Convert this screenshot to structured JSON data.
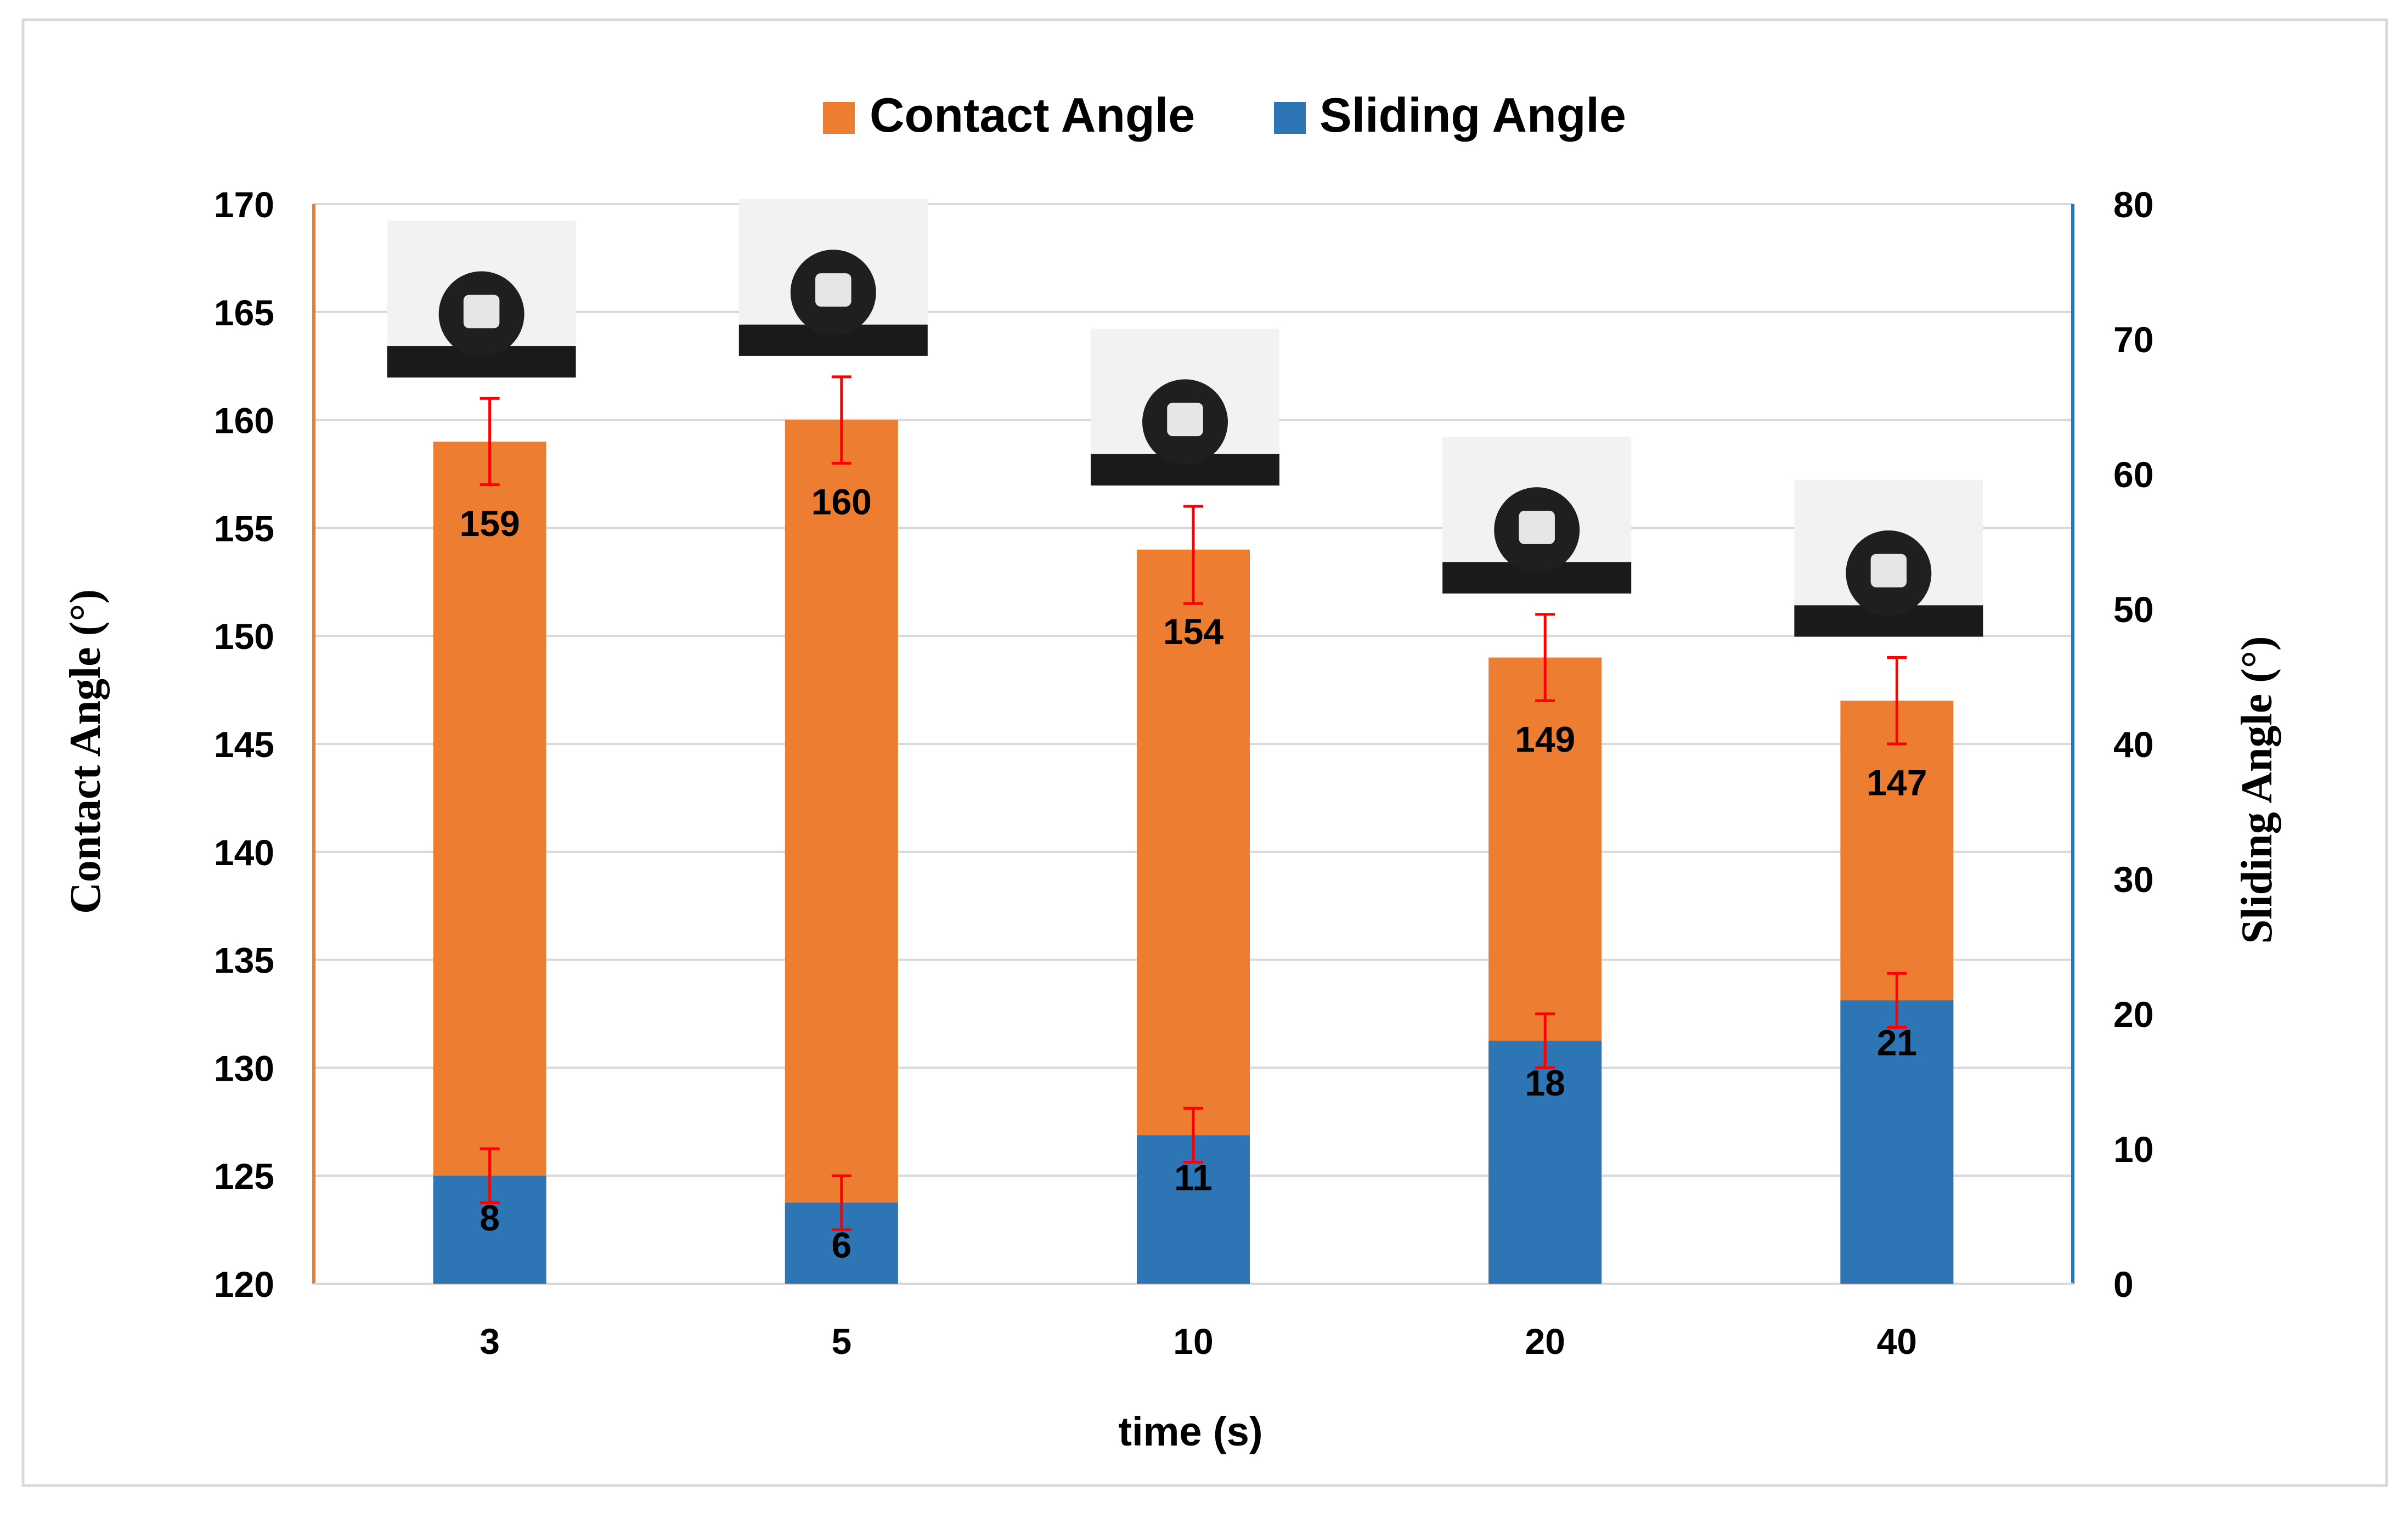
{
  "chart_data": {
    "type": "bar",
    "categories": [
      "3",
      "5",
      "10",
      "20",
      "40"
    ],
    "series": [
      {
        "name": "Contact Angle",
        "axis": "left",
        "color": "#ED7D31",
        "values": [
          159,
          160,
          154,
          149,
          147
        ],
        "data_labels": [
          "159",
          "160",
          "154",
          "149",
          "147"
        ],
        "error_minus": [
          2,
          2,
          2.5,
          2,
          2
        ],
        "error_plus": [
          2,
          2,
          2,
          2,
          2
        ]
      },
      {
        "name": "Sliding Angle",
        "axis": "right",
        "color": "#2E75B6",
        "values": [
          8,
          6,
          11,
          18,
          21
        ],
        "data_labels": [
          "8",
          "6",
          "11",
          "18",
          "21"
        ],
        "error_minus": [
          2,
          2,
          2,
          2,
          2
        ],
        "error_plus": [
          2,
          2,
          2,
          2,
          2
        ]
      }
    ],
    "xlabel": "time (s)",
    "ylabel": "Contact Angle  (°)",
    "y2label": "Sliding Angle (°)",
    "ylim": [
      120,
      170
    ],
    "yticks": [
      "120",
      "125",
      "130",
      "135",
      "140",
      "145",
      "150",
      "155",
      "160",
      "165",
      "170"
    ],
    "y2lim": [
      0,
      80
    ],
    "y2ticks": [
      "0",
      "10",
      "20",
      "30",
      "40",
      "50",
      "60",
      "70",
      "80"
    ],
    "grid": true,
    "legend": "top-center",
    "error_bar_color": "#FF0000",
    "left_axis_color": "#ED7D31",
    "right_axis_color": "#2E75B6",
    "inset_images": "water droplet photographs above each contact-angle bar"
  }
}
